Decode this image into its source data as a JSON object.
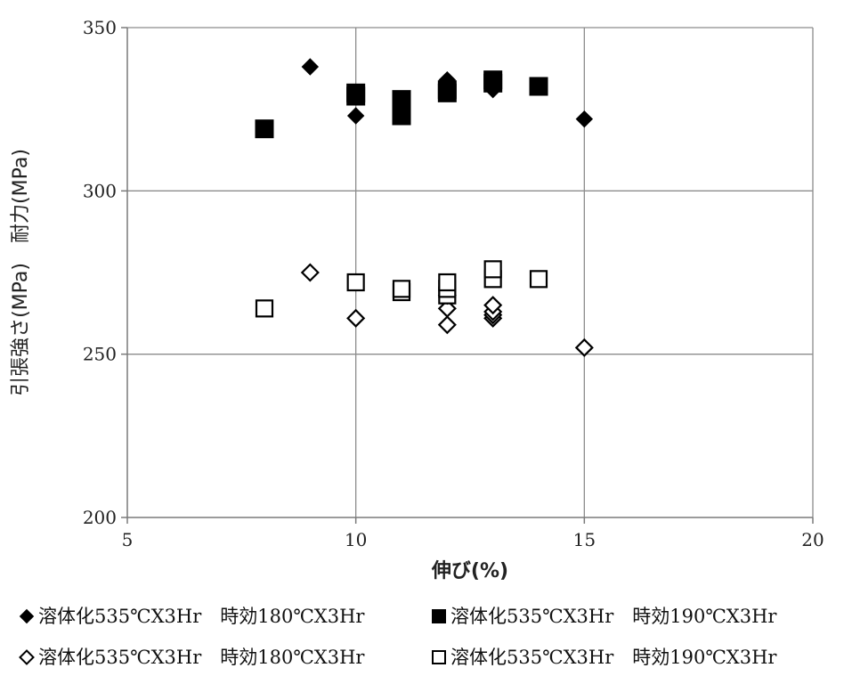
{
  "chart_data": {
    "type": "scatter",
    "title": "",
    "xlabel": "伸び(%)",
    "ylabel": "引張強さ(MPa)　耐力(MPa)",
    "xlim": [
      5,
      20
    ],
    "ylim": [
      200,
      350
    ],
    "xticks": [
      5,
      10,
      15,
      20
    ],
    "yticks": [
      200,
      250,
      300,
      350
    ],
    "grid": true,
    "legend_position": "bottom",
    "series": [
      {
        "name": "溶体化535℃X3Hr　時効180℃X3Hr",
        "marker": "diamond-filled",
        "color": "#000000",
        "points": [
          [
            9,
            338
          ],
          [
            10,
            323
          ],
          [
            12,
            334
          ],
          [
            12,
            331
          ],
          [
            13,
            331
          ],
          [
            13,
            334
          ],
          [
            15,
            322
          ]
        ]
      },
      {
        "name": "溶体化535℃X3Hr　時効190℃X3Hr",
        "marker": "square-filled",
        "color": "#000000",
        "points": [
          [
            8,
            319
          ],
          [
            10,
            329
          ],
          [
            10,
            330
          ],
          [
            11,
            323
          ],
          [
            11,
            326
          ],
          [
            11,
            328
          ],
          [
            12,
            330
          ],
          [
            12,
            331
          ],
          [
            13,
            333
          ],
          [
            13,
            334
          ],
          [
            14,
            332
          ]
        ]
      },
      {
        "name": "溶体化535℃X3Hr　時効180℃X3Hr",
        "marker": "diamond-open",
        "color": "#000000",
        "points": [
          [
            9,
            275
          ],
          [
            10,
            261
          ],
          [
            12,
            259
          ],
          [
            12,
            264
          ],
          [
            12,
            268
          ],
          [
            13,
            261
          ],
          [
            13,
            262
          ],
          [
            13,
            263
          ],
          [
            13,
            265
          ],
          [
            15,
            252
          ]
        ]
      },
      {
        "name": "溶体化535℃X3Hr　時効190℃X3Hr",
        "marker": "square-open",
        "color": "#000000",
        "points": [
          [
            8,
            264
          ],
          [
            10,
            272
          ],
          [
            11,
            269
          ],
          [
            11,
            270
          ],
          [
            12,
            268
          ],
          [
            12,
            270
          ],
          [
            12,
            272
          ],
          [
            13,
            273
          ],
          [
            13,
            276
          ],
          [
            14,
            273
          ]
        ]
      }
    ]
  }
}
